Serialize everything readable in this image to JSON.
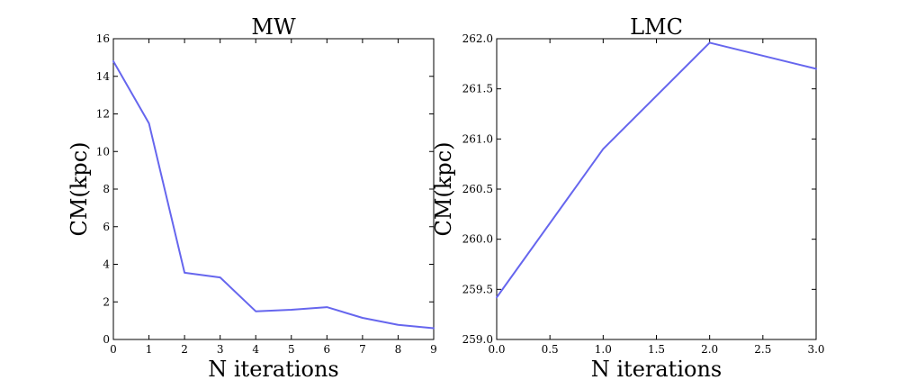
{
  "chart_data": [
    {
      "type": "line",
      "title": "MW",
      "xlabel": "N iterations",
      "ylabel": "CM(kpc)",
      "xlim": [
        0,
        9
      ],
      "ylim": [
        0,
        16
      ],
      "xticks": [
        0,
        1,
        2,
        3,
        4,
        5,
        6,
        7,
        8,
        9
      ],
      "xtick_labels": [
        "0",
        "1",
        "2",
        "3",
        "4",
        "5",
        "6",
        "7",
        "8",
        "9"
      ],
      "yticks": [
        0,
        2,
        4,
        6,
        8,
        10,
        12,
        14,
        16
      ],
      "ytick_labels": [
        "0",
        "2",
        "4",
        "6",
        "8",
        "10",
        "12",
        "14",
        "16"
      ],
      "grid": false,
      "color": "#6666ee",
      "series": [
        {
          "x": [
            0,
            1,
            2,
            3,
            4,
            5,
            6,
            7,
            8,
            9
          ],
          "values": [
            14.8,
            11.5,
            3.55,
            3.3,
            1.5,
            1.58,
            1.72,
            1.15,
            0.78,
            0.6
          ]
        }
      ]
    },
    {
      "type": "line",
      "title": "LMC",
      "xlabel": "N iterations",
      "ylabel": "CM(kpc)",
      "xlim": [
        0,
        3
      ],
      "ylim": [
        259.0,
        262.0
      ],
      "xticks": [
        0,
        0.5,
        1,
        1.5,
        2,
        2.5,
        3
      ],
      "xtick_labels": [
        "0.0",
        "0.5",
        "1.0",
        "1.5",
        "2.0",
        "2.5",
        "3.0"
      ],
      "yticks": [
        259.0,
        259.5,
        260.0,
        260.5,
        261.0,
        261.5,
        262.0
      ],
      "ytick_labels": [
        "259.0",
        "259.5",
        "260.0",
        "260.5",
        "261.0",
        "261.5",
        "262.0"
      ],
      "grid": false,
      "color": "#6666ee",
      "series": [
        {
          "x": [
            0,
            1,
            2,
            3
          ],
          "values": [
            259.42,
            260.9,
            261.96,
            261.7
          ]
        }
      ]
    }
  ]
}
